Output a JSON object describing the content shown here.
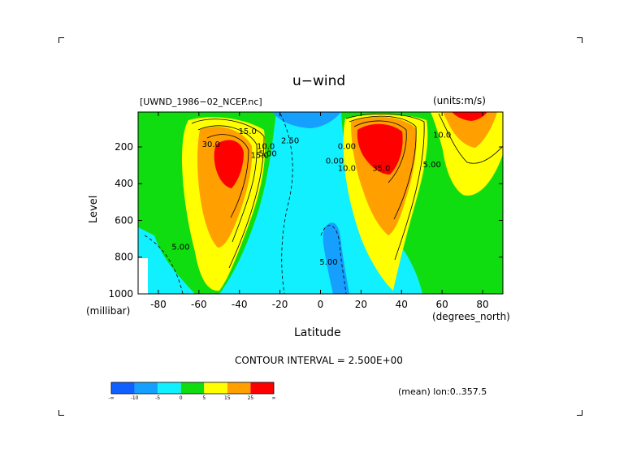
{
  "chart_data": {
    "type": "heatmap",
    "subtype": "filled-contour",
    "title": "u−wind",
    "dataset_label": "[UWND_1986−02_NCEP.nc]",
    "units_label": "(units:m/s)",
    "xlabel": "Latitude",
    "xunit": "(degrees_north)",
    "ylabel": "Level",
    "yunit": "(millibar)",
    "xlim": [
      -90,
      90
    ],
    "ylim": [
      1000,
      10
    ],
    "y_inverted": true,
    "xticks": [
      -80,
      -60,
      -40,
      -20,
      0,
      20,
      40,
      60,
      80
    ],
    "yticks": [
      200,
      400,
      600,
      800,
      1000
    ],
    "contour_interval_text": "CONTOUR INTERVAL = 2.500E+00",
    "mean_text": "(mean) lon:0..357.5",
    "negative_contours": "dashed",
    "jets": [
      {
        "lat": -48,
        "level": 260,
        "max": 32.5
      },
      {
        "lat": 30,
        "level": 210,
        "max": 37.5
      },
      {
        "lat": 72,
        "level": 30,
        "max": 30
      }
    ],
    "contour_labels": [
      {
        "text": "30.0",
        "lat": -54,
        "level": 200
      },
      {
        "text": "15.0",
        "lat": -36,
        "level": 130
      },
      {
        "text": "5.00",
        "lat": -26,
        "level": 250
      },
      {
        "text": "10.0",
        "lat": -27,
        "level": 210
      },
      {
        "text": "15.0",
        "lat": -30,
        "level": 260
      },
      {
        "text": "2.50",
        "lat": -15,
        "level": 180
      },
      {
        "text": "0.00",
        "lat": 7,
        "level": 290
      },
      {
        "text": "0.00",
        "lat": 13,
        "level": 210
      },
      {
        "text": "10.0",
        "lat": 13,
        "level": 330
      },
      {
        "text": "35.0",
        "lat": 30,
        "level": 330
      },
      {
        "text": "10.0",
        "lat": 60,
        "level": 150
      },
      {
        "text": "5.00",
        "lat": 55,
        "level": 310
      },
      {
        "text": "5.00",
        "lat": 4,
        "level": 840
      },
      {
        "text": "5.00",
        "lat": -69,
        "level": 760
      }
    ],
    "colorbar": {
      "colors": [
        "#1060ff",
        "#15a0ff",
        "#10f0ff",
        "#10dd10",
        "#ffff00",
        "#ff9f00",
        "#ff0000"
      ],
      "labels": [
        "-∞",
        "-10",
        "-5",
        "0",
        "5",
        "15",
        "25",
        "∞"
      ]
    }
  }
}
